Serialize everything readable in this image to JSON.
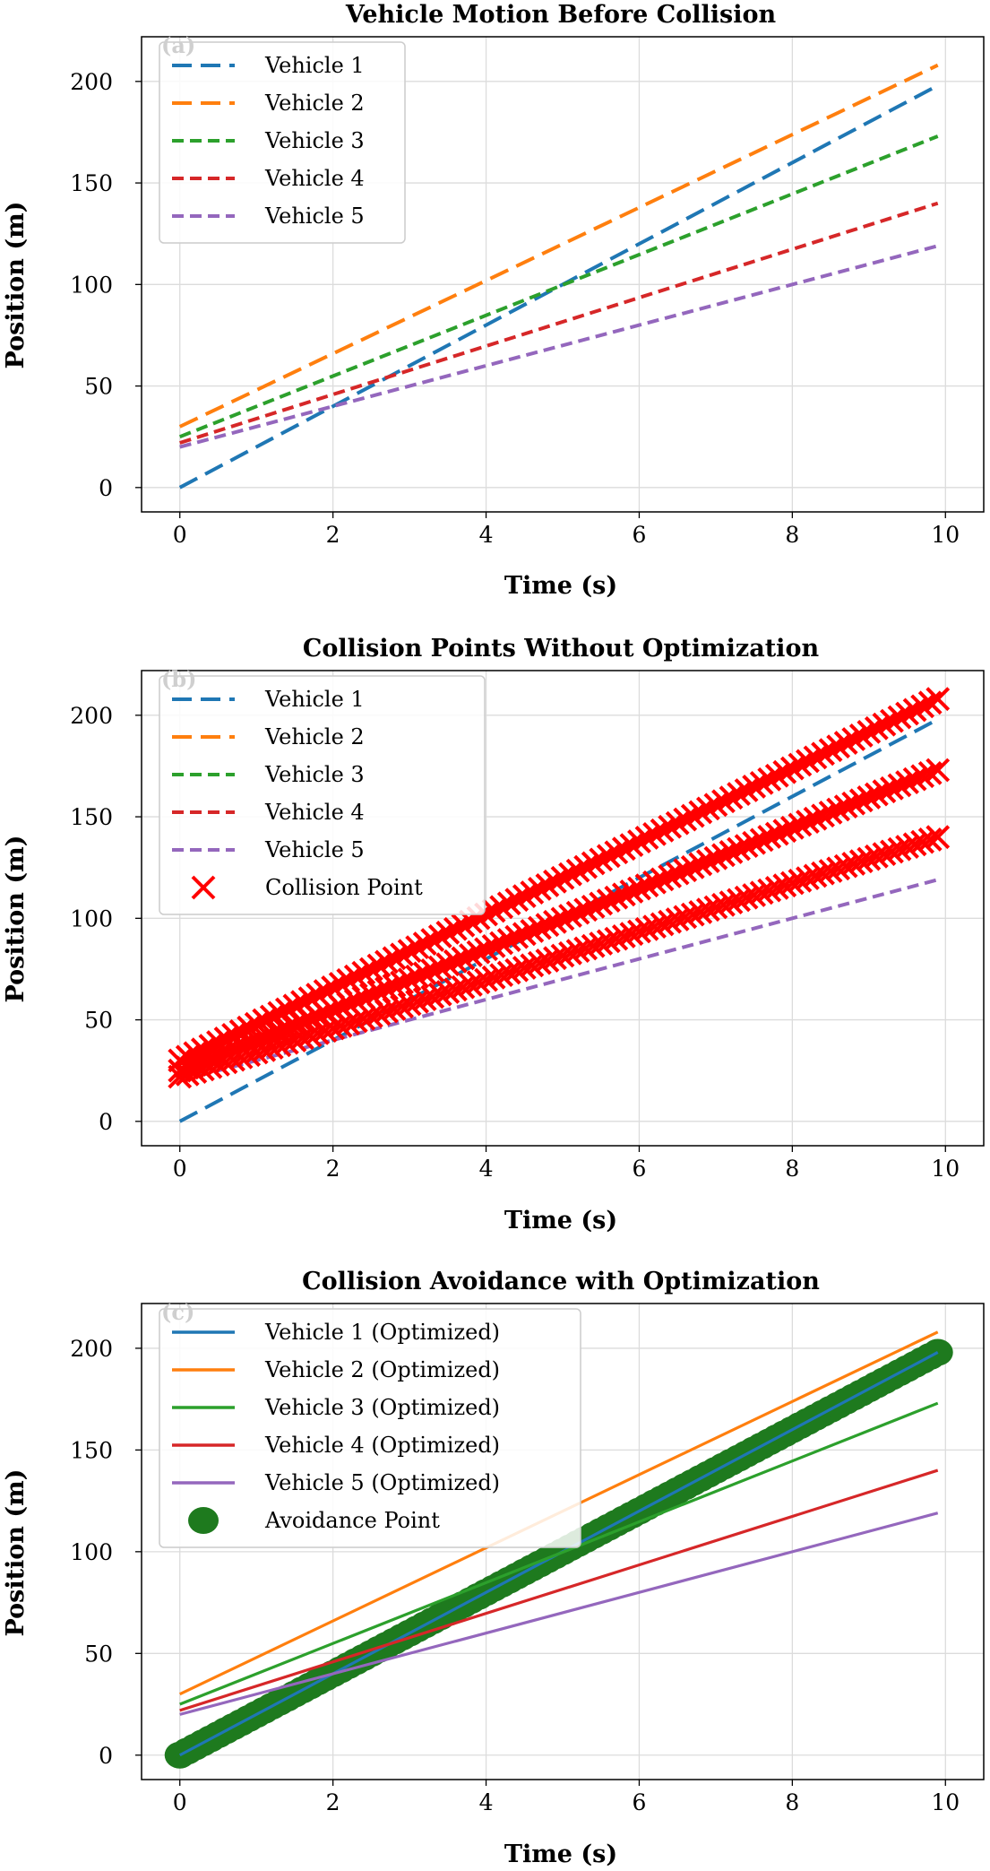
{
  "colors": {
    "blue": "#1f77b4",
    "orange": "#ff7f0e",
    "green": "#2ca02c",
    "red": "#d62728",
    "purple": "#9467bd",
    "collision": "#ff0000",
    "avoidance": "#1e7a1e"
  },
  "chart_data": [
    {
      "type": "line",
      "panel_tag": "(a)",
      "title": "Vehicle Motion Before Collision",
      "xlabel": "Time (s)",
      "ylabel": "Position (m)",
      "xlim": [
        -0.5,
        10.5
      ],
      "ylim": [
        -12,
        222
      ],
      "xticks": [
        "0",
        "2",
        "4",
        "6",
        "8",
        "10"
      ],
      "yticks": [
        "0",
        "50",
        "100",
        "150",
        "200"
      ],
      "grid": true,
      "legend_position": "top-left",
      "series": [
        {
          "name": "Vehicle 1",
          "style": "dash-long",
          "color": "#1f77b4",
          "x": [
            0,
            9.9
          ],
          "y": [
            0,
            198
          ]
        },
        {
          "name": "Vehicle 2",
          "style": "dash-long",
          "color": "#ff7f0e",
          "x": [
            0,
            9.9
          ],
          "y": [
            30,
            208
          ]
        },
        {
          "name": "Vehicle 3",
          "style": "dash",
          "color": "#2ca02c",
          "x": [
            0,
            9.9
          ],
          "y": [
            25,
            173
          ]
        },
        {
          "name": "Vehicle 4",
          "style": "dash",
          "color": "#d62728",
          "x": [
            0,
            9.9
          ],
          "y": [
            22,
            140
          ]
        },
        {
          "name": "Vehicle 5",
          "style": "dash",
          "color": "#9467bd",
          "x": [
            0,
            9.9
          ],
          "y": [
            20,
            119
          ]
        }
      ]
    },
    {
      "type": "line",
      "panel_tag": "(b)",
      "title": "Collision Points Without Optimization",
      "xlabel": "Time (s)",
      "ylabel": "Position (m)",
      "xlim": [
        -0.5,
        10.5
      ],
      "ylim": [
        -12,
        222
      ],
      "xticks": [
        "0",
        "2",
        "4",
        "6",
        "8",
        "10"
      ],
      "yticks": [
        "0",
        "50",
        "100",
        "150",
        "200"
      ],
      "grid": true,
      "legend_position": "top-left",
      "series": [
        {
          "name": "Vehicle 1",
          "style": "dash-long",
          "color": "#1f77b4",
          "x": [
            0,
            9.9
          ],
          "y": [
            0,
            198
          ]
        },
        {
          "name": "Vehicle 2",
          "style": "dash-long",
          "color": "#ff7f0e",
          "x": [
            0,
            9.9
          ],
          "y": [
            30,
            208
          ]
        },
        {
          "name": "Vehicle 3",
          "style": "dash",
          "color": "#2ca02c",
          "x": [
            0,
            9.9
          ],
          "y": [
            25,
            173
          ]
        },
        {
          "name": "Vehicle 4",
          "style": "dash",
          "color": "#d62728",
          "x": [
            0,
            9.9
          ],
          "y": [
            22,
            140
          ]
        },
        {
          "name": "Vehicle 5",
          "style": "dash",
          "color": "#9467bd",
          "x": [
            0,
            9.9
          ],
          "y": [
            20,
            119
          ]
        }
      ],
      "markers": {
        "name": "Collision Point",
        "shape": "x",
        "color": "#ff0000",
        "tracks": [
          {
            "x0": 0,
            "y0": 30,
            "x1": 9.9,
            "y1": 208,
            "step": 0.1
          },
          {
            "x0": 0,
            "y0": 25,
            "x1": 9.9,
            "y1": 173,
            "step": 0.1
          },
          {
            "x0": 0,
            "y0": 22,
            "x1": 9.9,
            "y1": 140,
            "step": 0.1
          }
        ]
      }
    },
    {
      "type": "line",
      "panel_tag": "(c)",
      "title": "Collision Avoidance with Optimization",
      "xlabel": "Time (s)",
      "ylabel": "Position (m)",
      "xlim": [
        -0.5,
        10.5
      ],
      "ylim": [
        -12,
        222
      ],
      "xticks": [
        "0",
        "2",
        "4",
        "6",
        "8",
        "10"
      ],
      "yticks": [
        "0",
        "50",
        "100",
        "150",
        "200"
      ],
      "grid": true,
      "legend_position": "top-left",
      "series": [
        {
          "name": "Vehicle 1 (Optimized)",
          "style": "solid",
          "color": "#1f77b4",
          "x": [
            0,
            9.9
          ],
          "y": [
            0,
            198
          ]
        },
        {
          "name": "Vehicle 2 (Optimized)",
          "style": "solid",
          "color": "#ff7f0e",
          "x": [
            0,
            9.9
          ],
          "y": [
            30,
            208
          ]
        },
        {
          "name": "Vehicle 3 (Optimized)",
          "style": "solid",
          "color": "#2ca02c",
          "x": [
            0,
            9.9
          ],
          "y": [
            25,
            173
          ]
        },
        {
          "name": "Vehicle 4 (Optimized)",
          "style": "solid",
          "color": "#d62728",
          "x": [
            0,
            9.9
          ],
          "y": [
            22,
            140
          ]
        },
        {
          "name": "Vehicle 5 (Optimized)",
          "style": "solid",
          "color": "#9467bd",
          "x": [
            0,
            9.9
          ],
          "y": [
            20,
            119
          ]
        }
      ],
      "markers": {
        "name": "Avoidance Point",
        "shape": "circle",
        "color": "#1e7a1e",
        "tracks": [
          {
            "x0": 0,
            "y0": 0,
            "x1": 9.9,
            "y1": 198,
            "step": 0.1
          }
        ]
      }
    }
  ]
}
